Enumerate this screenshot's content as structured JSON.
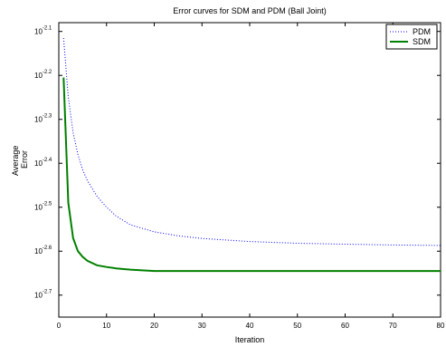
{
  "chart_data": {
    "type": "line",
    "title": "Error curves for SDM and PDM (Ball Joint)",
    "xlabel": "Iteration",
    "ylabel_lines": [
      "Average",
      "Error"
    ],
    "xlim": [
      0,
      80
    ],
    "ylim_log10": [
      -2.75,
      -2.08
    ],
    "y_scale": "log10",
    "grid": false,
    "legend_position": "top-right",
    "x_ticks": [
      0,
      10,
      20,
      30,
      40,
      50,
      60,
      70,
      80
    ],
    "y_ticks": [
      {
        "base": "10",
        "exp": "-2.1",
        "log": -2.1
      },
      {
        "base": "10",
        "exp": "-2.2",
        "log": -2.2
      },
      {
        "base": "10",
        "exp": "-2.3",
        "log": -2.3
      },
      {
        "base": "10",
        "exp": "-2.4",
        "log": -2.4
      },
      {
        "base": "10",
        "exp": "-2.5",
        "log": -2.5
      },
      {
        "base": "10",
        "exp": "-2.6",
        "log": -2.6
      },
      {
        "base": "10",
        "exp": "-2.7",
        "log": -2.7
      }
    ],
    "series": [
      {
        "name": "PDM",
        "color": "#0000ff",
        "style": "dotted",
        "x": [
          1,
          2,
          3,
          4,
          5,
          6,
          8,
          10,
          12,
          15,
          20,
          25,
          30,
          40,
          50,
          60,
          70,
          80
        ],
        "log10_y": [
          -2.115,
          -2.25,
          -2.33,
          -2.38,
          -2.415,
          -2.44,
          -2.475,
          -2.5,
          -2.52,
          -2.54,
          -2.556,
          -2.565,
          -2.571,
          -2.578,
          -2.582,
          -2.584,
          -2.586,
          -2.587
        ]
      },
      {
        "name": "SDM",
        "color": "#008000",
        "style": "solid",
        "x": [
          1,
          2,
          3,
          4,
          5,
          6,
          8,
          10,
          12,
          15,
          20,
          25,
          30,
          40,
          50,
          60,
          70,
          80
        ],
        "log10_y": [
          -2.205,
          -2.49,
          -2.57,
          -2.6,
          -2.613,
          -2.622,
          -2.632,
          -2.636,
          -2.639,
          -2.642,
          -2.645,
          -2.645,
          -2.645,
          -2.645,
          -2.645,
          -2.645,
          -2.645,
          -2.645
        ]
      }
    ]
  }
}
